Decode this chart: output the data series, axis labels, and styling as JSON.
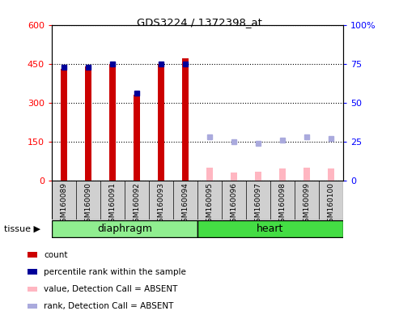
{
  "title": "GDS3224 / 1372398_at",
  "samples": [
    "GSM160089",
    "GSM160090",
    "GSM160091",
    "GSM160092",
    "GSM160093",
    "GSM160094",
    "GSM160095",
    "GSM160096",
    "GSM160097",
    "GSM160098",
    "GSM160099",
    "GSM160100"
  ],
  "tissue_groups": [
    {
      "label": "diaphragm",
      "indices": [
        0,
        1,
        2,
        3,
        4,
        5
      ],
      "color": "#90EE90"
    },
    {
      "label": "heart",
      "indices": [
        6,
        7,
        8,
        9,
        10,
        11
      ],
      "color": "#44DD44"
    }
  ],
  "count_values": [
    430,
    440,
    450,
    330,
    450,
    470,
    null,
    null,
    null,
    null,
    null,
    null
  ],
  "percentile_values": [
    73,
    73,
    75,
    56,
    75,
    75,
    null,
    null,
    null,
    null,
    null,
    null
  ],
  "absent_value": [
    null,
    null,
    null,
    null,
    null,
    null,
    50,
    30,
    35,
    45,
    50,
    45
  ],
  "absent_rank_pct": [
    null,
    null,
    null,
    null,
    null,
    null,
    28,
    25,
    24,
    26,
    28,
    27
  ],
  "ylim_left": [
    0,
    600
  ],
  "ylim_right": [
    0,
    100
  ],
  "yticks_left": [
    0,
    150,
    300,
    450,
    600
  ],
  "yticks_right": [
    0,
    25,
    50,
    75,
    100
  ],
  "bar_color_count": "#CC0000",
  "bar_color_absent": "#FFB6C1",
  "dot_color_percentile": "#000099",
  "dot_color_absent_rank": "#AAAADD",
  "legend_items": [
    {
      "color": "#CC0000",
      "label": "count",
      "marker": "s"
    },
    {
      "color": "#000099",
      "label": "percentile rank within the sample",
      "marker": "s"
    },
    {
      "color": "#FFB6C1",
      "label": "value, Detection Call = ABSENT",
      "marker": "s"
    },
    {
      "color": "#AAAADD",
      "label": "rank, Detection Call = ABSENT",
      "marker": "s"
    }
  ]
}
